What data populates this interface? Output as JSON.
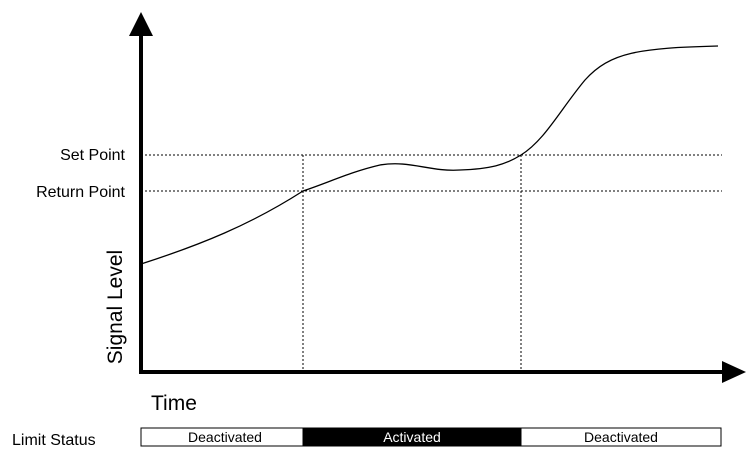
{
  "labels": {
    "set_point": "Set Point",
    "return_point": "Return Point",
    "y_axis": "Signal Level",
    "x_axis": "Time",
    "limit_status": "Limit Status"
  },
  "status_bar": [
    {
      "label": "Deactivated",
      "state": "inactive"
    },
    {
      "label": "Activated",
      "state": "active"
    },
    {
      "label": "Deactivated",
      "state": "inactive"
    }
  ],
  "colors": {
    "line": "#000000",
    "active_fill": "#000000",
    "active_text": "#ffffff",
    "inactive_fill": "#ffffff",
    "inactive_text": "#000000"
  }
}
